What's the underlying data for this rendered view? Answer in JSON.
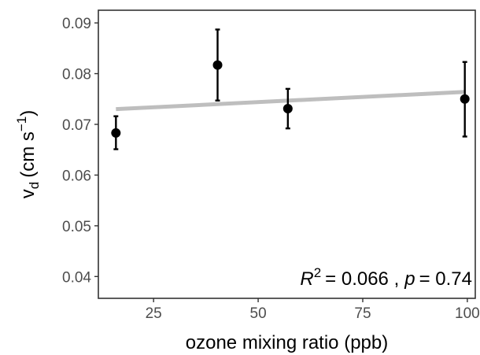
{
  "chart_data": {
    "type": "scatter",
    "xlabel": "ozone mixing ratio (ppb)",
    "ylabel": {
      "symbol": "v",
      "subscript": "d",
      "unit_prefix": "(cm s",
      "unit_exponent": "−1",
      "unit_suffix": ")"
    },
    "xlim": [
      11.8,
      101.9
    ],
    "ylim": [
      0.0357,
      0.0925
    ],
    "x_ticks": [
      25,
      50,
      75,
      100
    ],
    "x_tick_labels": [
      "25",
      "50",
      "75",
      "100"
    ],
    "y_ticks": [
      0.04,
      0.05,
      0.06,
      0.07,
      0.08,
      0.09
    ],
    "y_tick_labels": [
      "0.04",
      "0.05",
      "0.06",
      "0.07",
      "0.08",
      "0.09"
    ],
    "grid": false,
    "points": [
      {
        "x": 16,
        "y": 0.0683,
        "ymin": 0.0651,
        "ymax": 0.0716
      },
      {
        "x": 40.3,
        "y": 0.0817,
        "ymin": 0.0747,
        "ymax": 0.0887
      },
      {
        "x": 57.1,
        "y": 0.0731,
        "ymin": 0.0692,
        "ymax": 0.077
      },
      {
        "x": 99.4,
        "y": 0.075,
        "ymin": 0.0676,
        "ymax": 0.0823
      }
    ],
    "fit_line": {
      "x": [
        16,
        99.4
      ],
      "y": [
        0.073,
        0.0764
      ],
      "color": "#bebebe"
    },
    "annotation": {
      "r_symbol": "R",
      "r_exponent": "2",
      "r_value": "= 0.066 ,",
      "p_symbol": "p",
      "p_value": "= 0.74",
      "position": "bottom-right"
    },
    "colors": {
      "points": "#000000",
      "panel_border": "#333333",
      "tick_text": "#4d4d4d"
    }
  }
}
